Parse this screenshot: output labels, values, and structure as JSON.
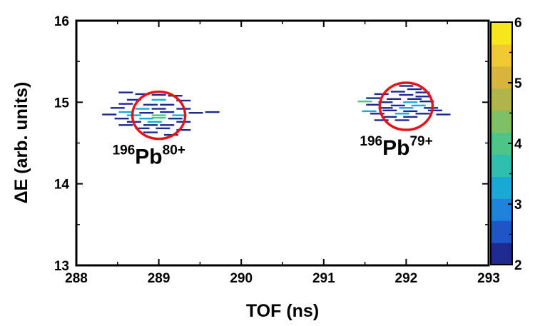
{
  "chart_data": {
    "type": "heatmap",
    "title": "",
    "xlabel": "TOF (ns)",
    "ylabel": "ΔE (arb. units)",
    "xlim": [
      288,
      293
    ],
    "ylim": [
      13,
      16
    ],
    "xticks": [
      "288",
      "289",
      "290",
      "291",
      "292",
      "293"
    ],
    "yticks": [
      "13",
      "14",
      "15",
      "16"
    ],
    "colorbar": {
      "min": 2,
      "max": 6,
      "ticks": [
        "2",
        "3",
        "4",
        "5",
        "6"
      ],
      "colors": [
        "#1f2a8f",
        "#1f55c7",
        "#1e82dd",
        "#19a9d2",
        "#2fbfb0",
        "#4fc489",
        "#7fbf66",
        "#b0b44a",
        "#d8b43c",
        "#f0c832",
        "#f6e61a"
      ]
    },
    "annotations": [
      {
        "isotope": "196",
        "element": "Pb",
        "charge": "80+",
        "tof": 289.0,
        "dE": 14.84
      },
      {
        "isotope": "196",
        "element": "Pb",
        "charge": "79+",
        "tof": 292.0,
        "dE": 14.95
      }
    ],
    "clusters": [
      {
        "tof": 289.0,
        "dE": 14.84,
        "bins": [
          [
            288.6,
            15.12,
            2
          ],
          [
            288.8,
            15.1,
            2
          ],
          [
            289.0,
            15.09,
            2
          ],
          [
            289.2,
            15.08,
            2
          ],
          [
            288.7,
            15.03,
            2
          ],
          [
            289.0,
            15.03,
            3
          ],
          [
            289.3,
            15.02,
            2
          ],
          [
            288.6,
            14.98,
            2
          ],
          [
            288.9,
            14.97,
            2
          ],
          [
            289.1,
            14.97,
            2
          ],
          [
            288.5,
            14.93,
            2
          ],
          [
            288.8,
            14.92,
            3
          ],
          [
            289.0,
            14.92,
            2
          ],
          [
            289.3,
            14.92,
            2
          ],
          [
            288.6,
            14.88,
            3
          ],
          [
            288.85,
            14.87,
            2
          ],
          [
            289.1,
            14.88,
            2
          ],
          [
            289.45,
            14.87,
            2
          ],
          [
            289.65,
            14.88,
            2
          ],
          [
            288.4,
            14.85,
            2
          ],
          [
            288.7,
            14.84,
            3
          ],
          [
            289.0,
            14.84,
            4
          ],
          [
            289.25,
            14.84,
            3
          ],
          [
            288.55,
            14.8,
            2
          ],
          [
            288.85,
            14.8,
            3
          ],
          [
            289.0,
            14.81,
            4
          ],
          [
            289.2,
            14.8,
            2
          ],
          [
            288.7,
            14.76,
            2
          ],
          [
            288.95,
            14.76,
            3
          ],
          [
            289.3,
            14.76,
            2
          ],
          [
            288.6,
            14.72,
            2
          ],
          [
            288.9,
            14.72,
            2
          ],
          [
            289.1,
            14.72,
            2
          ],
          [
            288.8,
            14.68,
            2
          ],
          [
            289.05,
            14.68,
            2
          ],
          [
            289.3,
            14.66,
            2
          ],
          [
            288.9,
            14.63,
            2
          ],
          [
            289.15,
            14.6,
            2
          ]
        ]
      },
      {
        "tof": 292.0,
        "dE": 14.95,
        "bins": [
          [
            292.0,
            15.2,
            2
          ],
          [
            292.1,
            15.16,
            2
          ],
          [
            291.9,
            15.13,
            2
          ],
          [
            292.2,
            15.12,
            2
          ],
          [
            291.7,
            15.1,
            2
          ],
          [
            292.0,
            15.09,
            2
          ],
          [
            292.2,
            15.07,
            2
          ],
          [
            291.6,
            15.05,
            2
          ],
          [
            291.85,
            15.04,
            2
          ],
          [
            292.1,
            15.04,
            2
          ],
          [
            291.5,
            15.01,
            4
          ],
          [
            291.75,
            15.0,
            2
          ],
          [
            292.05,
            15.0,
            3
          ],
          [
            292.25,
            15.01,
            2
          ],
          [
            291.6,
            14.97,
            2
          ],
          [
            291.9,
            14.96,
            2
          ],
          [
            292.15,
            14.96,
            3
          ],
          [
            291.75,
            14.93,
            2
          ],
          [
            292.0,
            14.93,
            3
          ],
          [
            292.3,
            14.93,
            2
          ],
          [
            291.55,
            14.89,
            3
          ],
          [
            291.8,
            14.9,
            2
          ],
          [
            292.05,
            14.89,
            2
          ],
          [
            292.35,
            14.9,
            2
          ],
          [
            291.65,
            14.86,
            2
          ],
          [
            291.95,
            14.86,
            3
          ],
          [
            292.2,
            14.86,
            2
          ],
          [
            292.45,
            14.85,
            2
          ],
          [
            291.8,
            14.82,
            2
          ],
          [
            292.05,
            14.82,
            2
          ],
          [
            291.7,
            14.78,
            2
          ],
          [
            291.95,
            14.78,
            2
          ]
        ]
      }
    ]
  }
}
